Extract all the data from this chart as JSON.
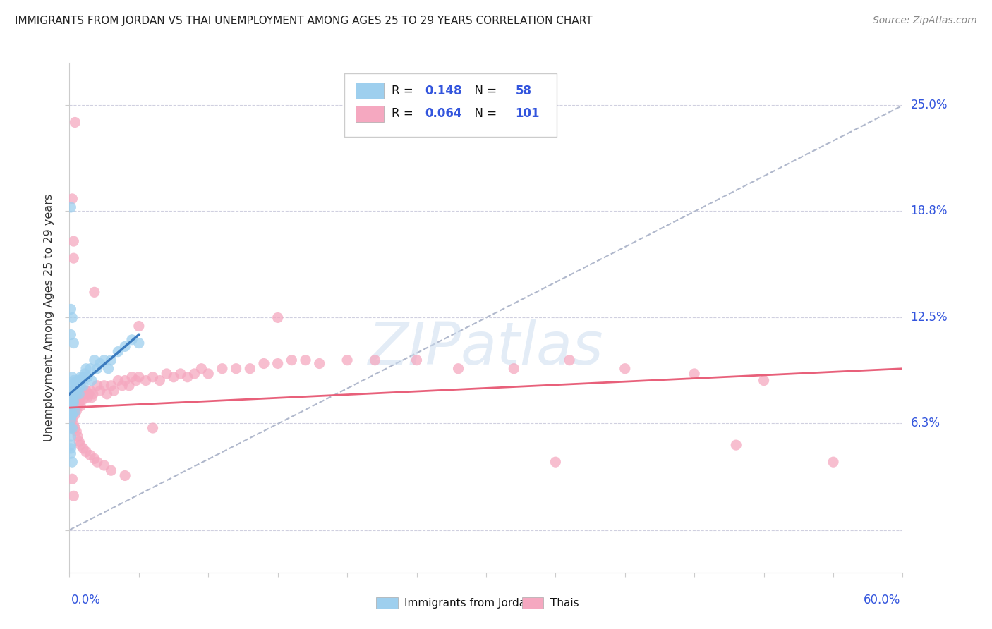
{
  "title": "IMMIGRANTS FROM JORDAN VS THAI UNEMPLOYMENT AMONG AGES 25 TO 29 YEARS CORRELATION CHART",
  "source": "Source: ZipAtlas.com",
  "xmin": 0.0,
  "xmax": 0.6,
  "ymin": -0.025,
  "ymax": 0.275,
  "ylabel_ticks": [
    0.0,
    0.063,
    0.125,
    0.188,
    0.25
  ],
  "ylabel_labels": [
    "",
    "6.3%",
    "12.5%",
    "18.8%",
    "25.0%"
  ],
  "jordan_color": "#9ecfee",
  "thai_color": "#f5a8c0",
  "jordan_line_color": "#3b7bbf",
  "thai_line_color": "#e8607a",
  "diagonal_color": "#b0b8cc",
  "jordan_r": "0.148",
  "jordan_n": "58",
  "thai_r": "0.064",
  "thai_n": "101",
  "stat_color": "#3355dd",
  "watermark_color": "#ccddf0",
  "jordan_x": [
    0.001,
    0.001,
    0.001,
    0.001,
    0.001,
    0.001,
    0.002,
    0.002,
    0.002,
    0.002,
    0.002,
    0.003,
    0.003,
    0.003,
    0.004,
    0.004,
    0.005,
    0.005,
    0.006,
    0.006,
    0.007,
    0.007,
    0.008,
    0.008,
    0.009,
    0.01,
    0.01,
    0.011,
    0.012,
    0.013,
    0.015,
    0.016,
    0.018,
    0.02,
    0.022,
    0.025,
    0.028,
    0.03,
    0.035,
    0.04,
    0.045,
    0.05,
    0.001,
    0.001,
    0.002,
    0.002,
    0.003,
    0.004,
    0.001,
    0.002,
    0.001,
    0.003,
    0.001,
    0.001,
    0.002,
    0.001,
    0.002,
    0.001
  ],
  "jordan_y": [
    0.19,
    0.073,
    0.083,
    0.078,
    0.072,
    0.068,
    0.09,
    0.085,
    0.08,
    0.075,
    0.068,
    0.088,
    0.082,
    0.076,
    0.087,
    0.082,
    0.085,
    0.08,
    0.088,
    0.083,
    0.085,
    0.08,
    0.09,
    0.085,
    0.088,
    0.09,
    0.085,
    0.092,
    0.095,
    0.09,
    0.095,
    0.088,
    0.1,
    0.095,
    0.098,
    0.1,
    0.095,
    0.1,
    0.105,
    0.108,
    0.112,
    0.11,
    0.065,
    0.06,
    0.072,
    0.068,
    0.075,
    0.07,
    0.13,
    0.125,
    0.115,
    0.11,
    0.055,
    0.05,
    0.06,
    0.045,
    0.04,
    0.048
  ],
  "thai_x": [
    0.001,
    0.001,
    0.001,
    0.001,
    0.002,
    0.002,
    0.002,
    0.002,
    0.003,
    0.003,
    0.003,
    0.004,
    0.004,
    0.004,
    0.005,
    0.005,
    0.005,
    0.006,
    0.006,
    0.007,
    0.007,
    0.008,
    0.008,
    0.009,
    0.01,
    0.01,
    0.011,
    0.012,
    0.013,
    0.014,
    0.015,
    0.016,
    0.017,
    0.018,
    0.02,
    0.022,
    0.025,
    0.027,
    0.03,
    0.032,
    0.035,
    0.038,
    0.04,
    0.043,
    0.045,
    0.048,
    0.05,
    0.055,
    0.06,
    0.065,
    0.07,
    0.075,
    0.08,
    0.085,
    0.09,
    0.095,
    0.1,
    0.11,
    0.12,
    0.13,
    0.14,
    0.15,
    0.16,
    0.17,
    0.18,
    0.2,
    0.22,
    0.25,
    0.28,
    0.32,
    0.36,
    0.4,
    0.45,
    0.5,
    0.55,
    0.002,
    0.003,
    0.004,
    0.005,
    0.006,
    0.007,
    0.008,
    0.01,
    0.012,
    0.015,
    0.018,
    0.02,
    0.025,
    0.03,
    0.04,
    0.002,
    0.003,
    0.15,
    0.004,
    0.35,
    0.003,
    0.05,
    0.002,
    0.06,
    0.48,
    0.003
  ],
  "thai_y": [
    0.075,
    0.07,
    0.065,
    0.06,
    0.082,
    0.078,
    0.073,
    0.068,
    0.08,
    0.075,
    0.07,
    0.078,
    0.073,
    0.068,
    0.08,
    0.075,
    0.07,
    0.078,
    0.073,
    0.08,
    0.075,
    0.078,
    0.073,
    0.08,
    0.082,
    0.077,
    0.08,
    0.082,
    0.078,
    0.08,
    0.082,
    0.078,
    0.08,
    0.14,
    0.085,
    0.082,
    0.085,
    0.08,
    0.085,
    0.082,
    0.088,
    0.085,
    0.088,
    0.085,
    0.09,
    0.088,
    0.09,
    0.088,
    0.09,
    0.088,
    0.092,
    0.09,
    0.092,
    0.09,
    0.092,
    0.095,
    0.092,
    0.095,
    0.095,
    0.095,
    0.098,
    0.098,
    0.1,
    0.1,
    0.098,
    0.1,
    0.1,
    0.1,
    0.095,
    0.095,
    0.1,
    0.095,
    0.092,
    0.088,
    0.04,
    0.065,
    0.062,
    0.06,
    0.058,
    0.055,
    0.052,
    0.05,
    0.048,
    0.046,
    0.044,
    0.042,
    0.04,
    0.038,
    0.035,
    0.032,
    0.195,
    0.16,
    0.125,
    0.24,
    0.04,
    0.17,
    0.12,
    0.03,
    0.06,
    0.05,
    0.02
  ]
}
